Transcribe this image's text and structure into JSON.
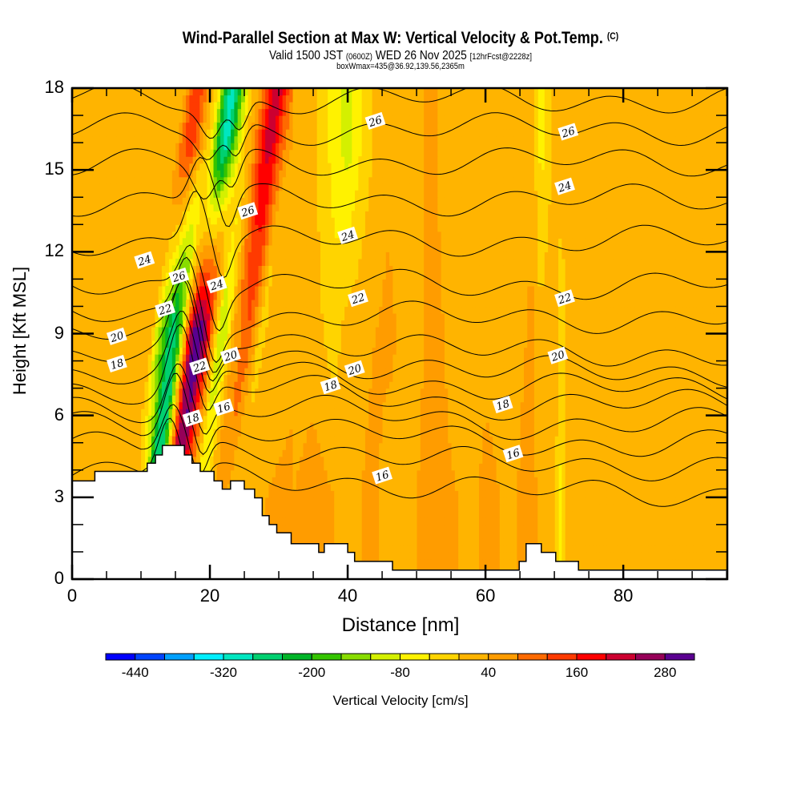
{
  "header": {
    "title": "Wind-Parallel Section at Max W: Vertical Velocity & Pot.Temp.",
    "copyright": "(C)",
    "valid_prefix": "Valid 1500 JST",
    "valid_utc": "(0600Z)",
    "valid_date": "WED 26 Nov 2025",
    "forecast": "[12hrFcst@2228z]",
    "boxwmax": "boxWmax=435@36.92,139.56,2365m"
  },
  "chart_data": {
    "type": "heatmap",
    "title": "Wind-Parallel Section at Max W: Vertical Velocity & Pot.Temp.",
    "xlabel": "Distance [nm]",
    "ylabel": "Height [Kft MSL]",
    "xlim": [
      0,
      95.1
    ],
    "ylim": [
      0,
      18
    ],
    "x_ticks": [
      "0",
      "20",
      "40",
      "60",
      "80"
    ],
    "x_tick_values": [
      0,
      20,
      40,
      60,
      80
    ],
    "x_minor_step": 5,
    "y_ticks": [
      "0",
      "3",
      "6",
      "9",
      "12",
      "15",
      "18"
    ],
    "y_tick_values": [
      0,
      3,
      6,
      9,
      12,
      15,
      18
    ],
    "y_minor_step": 1,
    "colorbar": {
      "label": "Vertical Velocity [cm/s]",
      "levels": [
        -480,
        -440,
        -400,
        -360,
        -320,
        -280,
        -240,
        -200,
        -160,
        -120,
        -80,
        -40,
        0,
        40,
        80,
        120,
        160,
        200,
        240,
        280,
        320
      ],
      "tick_labels": [
        "-440",
        "-320",
        "-200",
        "-80",
        "40",
        "160",
        "280"
      ],
      "tick_values": [
        -440,
        -320,
        -200,
        -80,
        40,
        160,
        280
      ],
      "colors": [
        "#0000ff",
        "#0044ff",
        "#00a0ff",
        "#00eeff",
        "#00e6c0",
        "#00d070",
        "#00b428",
        "#34c400",
        "#88dc00",
        "#d4f000",
        "#fff200",
        "#ffd400",
        "#ffb400",
        "#ff9c00",
        "#ff6a00",
        "#ff3a00",
        "#ff0000",
        "#cc0030",
        "#960058",
        "#5a0090"
      ]
    },
    "vertical_velocity_columns_note": "approximate w (cm/s) along distance for low, mid and upper layers",
    "w_profile": {
      "x": [
        0,
        5,
        8,
        10,
        12,
        13,
        14,
        15,
        16,
        17,
        18,
        19,
        20,
        21,
        22,
        23,
        24,
        25,
        26,
        27,
        28,
        29,
        30,
        32,
        35,
        38,
        40,
        42,
        44,
        46,
        48,
        50,
        52,
        54,
        56,
        58,
        60,
        62,
        64,
        66,
        67,
        68,
        70,
        71,
        72,
        74,
        76,
        78,
        80,
        82,
        84,
        86,
        88,
        90,
        92,
        95.1
      ],
      "upper": [
        10,
        30,
        20,
        10,
        40,
        120,
        150,
        90,
        10,
        -60,
        -240,
        -320,
        -200,
        -80,
        10,
        60,
        140,
        220,
        200,
        120,
        60,
        30,
        10,
        5,
        10,
        -60,
        -100,
        -40,
        10,
        30,
        10,
        20,
        60,
        20,
        10,
        30,
        20,
        10,
        30,
        40,
        10,
        -60,
        10,
        10,
        30,
        20,
        10,
        40,
        20,
        30,
        40,
        20,
        10,
        10,
        20,
        10
      ],
      "mid": [
        10,
        20,
        30,
        40,
        20,
        -120,
        -200,
        -280,
        -200,
        40,
        280,
        330,
        240,
        60,
        -120,
        -80,
        40,
        80,
        120,
        60,
        -40,
        20,
        30,
        10,
        20,
        -20,
        20,
        30,
        40,
        50,
        30,
        20,
        60,
        40,
        10,
        20,
        30,
        30,
        20,
        40,
        50,
        10,
        40,
        -20,
        10,
        30,
        20,
        40,
        30,
        20,
        30,
        20,
        10,
        20,
        30,
        20
      ],
      "low": [
        30,
        20,
        30,
        40,
        40,
        30,
        -40,
        -240,
        -320,
        -60,
        200,
        240,
        120,
        60,
        -40,
        -60,
        20,
        60,
        40,
        20,
        40,
        30,
        20,
        40,
        60,
        40,
        20,
        40,
        50,
        20,
        30,
        40,
        60,
        50,
        40,
        30,
        50,
        40,
        30,
        60,
        50,
        20,
        10,
        -60,
        20,
        30,
        20,
        40,
        30,
        40,
        30,
        20,
        30,
        20,
        30,
        40
      ]
    },
    "terrain": {
      "x": [
        0,
        3.3,
        3.3,
        10.9,
        10.9,
        12.1,
        12.1,
        13.1,
        13.1,
        16.3,
        16.3,
        17.4,
        17.4,
        18.6,
        18.6,
        20.6,
        20.6,
        21.8,
        21.8,
        23.0,
        23.0,
        25.0,
        25.0,
        26.5,
        26.5,
        27.6,
        27.6,
        28.6,
        28.6,
        29.7,
        29.7,
        31.8,
        31.8,
        35.8,
        35.8,
        36.6,
        36.6,
        40.0,
        40.0,
        41.0,
        41.0,
        46.5,
        46.5,
        64.9,
        64.9,
        65.9,
        65.9,
        68.1,
        68.1,
        70.2,
        70.2,
        73.5,
        73.5,
        95.1
      ],
      "height": [
        3.6,
        3.6,
        3.95,
        3.95,
        4.25,
        4.25,
        4.55,
        4.55,
        4.9,
        4.9,
        4.55,
        4.55,
        4.25,
        4.25,
        3.95,
        3.95,
        3.6,
        3.6,
        3.3,
        3.3,
        3.6,
        3.6,
        3.3,
        3.3,
        2.98,
        2.98,
        2.33,
        2.33,
        2.0,
        2.0,
        1.7,
        1.7,
        1.3,
        1.3,
        0.98,
        0.98,
        1.3,
        1.3,
        0.98,
        0.98,
        0.65,
        0.65,
        0.33,
        0.33,
        0.65,
        0.65,
        1.3,
        1.3,
        0.98,
        0.98,
        0.65,
        0.65,
        0.33,
        0.33
      ]
    },
    "contours": {
      "field": "Potential Temperature",
      "levels": [
        14,
        15,
        16,
        17,
        18,
        19,
        20,
        21,
        22,
        23,
        24,
        25,
        26,
        27,
        28
      ],
      "labels": [
        {
          "value": "26",
          "x": 44,
          "y": 16.8
        },
        {
          "value": "26",
          "x": 72,
          "y": 16.4
        },
        {
          "value": "24",
          "x": 71.5,
          "y": 14.4
        },
        {
          "value": "24",
          "x": 40,
          "y": 12.6
        },
        {
          "value": "26",
          "x": 25.5,
          "y": 13.5
        },
        {
          "value": "24",
          "x": 10.5,
          "y": 11.7
        },
        {
          "value": "26",
          "x": 15.5,
          "y": 11.1
        },
        {
          "value": "24",
          "x": 21,
          "y": 10.8
        },
        {
          "value": "22",
          "x": 41.5,
          "y": 10.3
        },
        {
          "value": "22",
          "x": 71.5,
          "y": 10.3
        },
        {
          "value": "22",
          "x": 13.5,
          "y": 9.9
        },
        {
          "value": "20",
          "x": 6.5,
          "y": 8.9
        },
        {
          "value": "20",
          "x": 23,
          "y": 8.2
        },
        {
          "value": "20",
          "x": 70.5,
          "y": 8.2
        },
        {
          "value": "18",
          "x": 6.5,
          "y": 7.9
        },
        {
          "value": "22",
          "x": 18.5,
          "y": 7.8
        },
        {
          "value": "20",
          "x": 41,
          "y": 7.7
        },
        {
          "value": "18",
          "x": 37.5,
          "y": 7.1
        },
        {
          "value": "18",
          "x": 62.5,
          "y": 6.4
        },
        {
          "value": "16",
          "x": 22,
          "y": 6.3
        },
        {
          "value": "18",
          "x": 17.5,
          "y": 5.9
        },
        {
          "value": "16",
          "x": 64,
          "y": 4.6
        },
        {
          "value": "16",
          "x": 45,
          "y": 3.8
        }
      ],
      "base_heights": [
        3.8,
        4.8,
        5.6,
        6.3,
        7.0,
        7.6,
        8.2,
        8.9,
        9.6,
        10.8,
        12.4,
        13.9,
        15.3,
        16.5,
        17.6
      ]
    }
  }
}
